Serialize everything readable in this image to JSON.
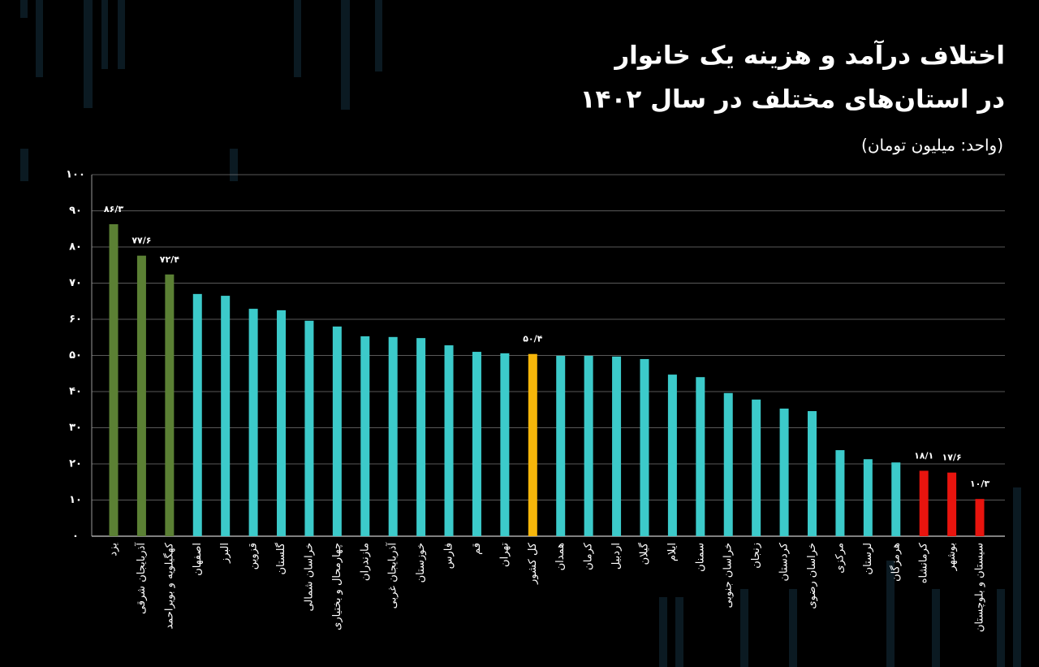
{
  "chart_data": {
    "type": "bar",
    "title": "اختلاف درآمد و هزینه یک خانوار",
    "subtitle": "در استان‌های مختلف در سال ۱۴۰۲",
    "unit_note": "(واحد: میلیون تومان)",
    "categories": [
      "یزد",
      "آذربایجان شرقی",
      "کهگیلویه و بویراحمد",
      "اصفهان",
      "البرز",
      "قزوین",
      "گلستان",
      "خراسان شمالی",
      "چهارمحال و بختیاری",
      "مازندران",
      "آذربایجان غربی",
      "خوزستان",
      "فارس",
      "قم",
      "تهران",
      "کل کشور",
      "همدان",
      "کرمان",
      "اردبیل",
      "گیلان",
      "ایلام",
      "سمنان",
      "خراسان جنوبی",
      "زنجان",
      "کردستان",
      "خراسان رضوی",
      "مرکزی",
      "لرستان",
      "هرمزگان",
      "کرمانشاه",
      "بوشهر",
      "سیستان و بلوچستان"
    ],
    "values": [
      86.3,
      77.6,
      72.4,
      67.0,
      66.5,
      62.9,
      62.5,
      59.6,
      58.0,
      55.3,
      55.1,
      54.8,
      52.8,
      51.0,
      50.6,
      50.4,
      49.9,
      49.9,
      49.7,
      49.0,
      44.7,
      44.0,
      39.6,
      37.8,
      35.3,
      34.6,
      23.8,
      21.3,
      20.4,
      18.1,
      17.6,
      10.3
    ],
    "value_labels": [
      "۸۶/۳",
      "۷۷/۶",
      "۷۲/۴",
      null,
      null,
      null,
      null,
      null,
      null,
      null,
      null,
      null,
      null,
      null,
      null,
      "۵۰/۴",
      null,
      null,
      null,
      null,
      null,
      null,
      null,
      null,
      null,
      null,
      null,
      null,
      null,
      "۱۸/۱",
      "۱۷/۶",
      "۱۰/۳"
    ],
    "colors": [
      "#5b8034",
      "#5b8034",
      "#5b8034",
      "#3ccaca",
      "#3ccaca",
      "#3ccaca",
      "#3ccaca",
      "#3ccaca",
      "#3ccaca",
      "#3ccaca",
      "#3ccaca",
      "#3ccaca",
      "#3ccaca",
      "#3ccaca",
      "#3ccaca",
      "#f6b60a",
      "#3ccaca",
      "#3ccaca",
      "#3ccaca",
      "#3ccaca",
      "#3ccaca",
      "#3ccaca",
      "#3ccaca",
      "#3ccaca",
      "#3ccaca",
      "#3ccaca",
      "#3ccaca",
      "#3ccaca",
      "#3ccaca",
      "#e8140e",
      "#e8140e",
      "#e8140e"
    ],
    "ylim": [
      0,
      100
    ],
    "yticks": [
      {
        "value": 0,
        "label": "۰"
      },
      {
        "value": 10,
        "label": "۱۰"
      },
      {
        "value": 20,
        "label": "۲۰"
      },
      {
        "value": 30,
        "label": "۳۰"
      },
      {
        "value": 40,
        "label": "۴۰"
      },
      {
        "value": 50,
        "label": "۵۰"
      },
      {
        "value": 60,
        "label": "۶۰"
      },
      {
        "value": 70,
        "label": "۷۰"
      },
      {
        "value": 80,
        "label": "۸۰"
      },
      {
        "value": 90,
        "label": "۹۰"
      },
      {
        "value": 100,
        "label": "۱۰۰"
      }
    ],
    "grid": true
  }
}
